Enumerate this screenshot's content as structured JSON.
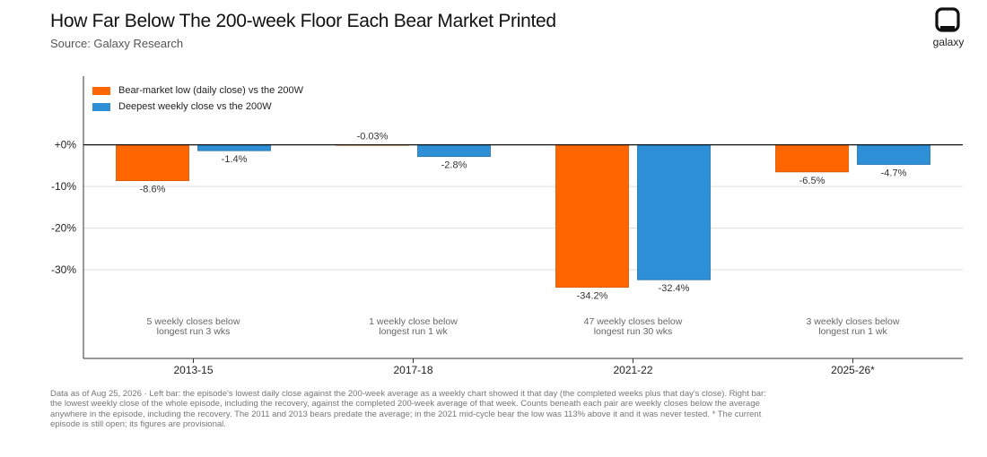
{
  "header": {
    "title": "How Far Below The 200-week Floor Each Bear Market Printed",
    "subtitle": "Source: Galaxy Research"
  },
  "brand": {
    "logo_text": "galaxy",
    "logo_icon": "galaxy-logo-icon"
  },
  "legend": [
    {
      "label": "Bear-market low (daily close) vs the 200W",
      "color": "#ff6600"
    },
    {
      "label": "Deepest weekly close vs the 200W",
      "color": "#2d8fd5"
    }
  ],
  "chart_data": {
    "type": "bar",
    "title": "How Far Below The 200-week Floor Each Bear Market Printed",
    "categories": [
      "2013-15",
      "2017-18",
      "2021-22",
      "2025-26*"
    ],
    "series": [
      {
        "name": "Bear-market low (daily close) vs the 200W",
        "color": "#ff6600",
        "values": [
          -8.6,
          -0.03,
          -34.2,
          -6.5
        ],
        "labels": [
          "-8.6%",
          "-0.03%",
          "-34.2%",
          "-6.5%"
        ]
      },
      {
        "name": "Deepest weekly close vs the 200W",
        "color": "#2d8fd5",
        "values": [
          -1.4,
          -2.8,
          -32.4,
          -4.7
        ],
        "labels": [
          "-1.4%",
          "-2.8%",
          "-32.4%",
          "-4.7%"
        ]
      }
    ],
    "yticks": [
      0,
      -10,
      -20,
      -30
    ],
    "ytick_labels": [
      "+0%",
      "-10%",
      "-20%",
      "-30%"
    ],
    "ylim": [
      -51.3,
      16.5
    ],
    "grid": true,
    "legend_position": "top-left",
    "annotations": [
      {
        "line1": "5 weekly closes below",
        "line2": "longest run 3 wks"
      },
      {
        "line1": "1 weekly close below",
        "line2": "longest run 1 wk"
      },
      {
        "line1": "47 weekly closes below",
        "line2": "longest run 30 wks"
      },
      {
        "line1": "3 weekly closes below",
        "line2": "longest run 1 wk"
      }
    ]
  },
  "footnote": "Data as of Aug 25, 2026 · Left bar: the episode's lowest daily close against the 200-week average as a weekly chart showed it that day (the completed weeks plus that day's close). Right bar: the lowest weekly close of the whole episode, including the recovery, against the completed 200-week average of that week. Counts beneath each pair are weekly closes below the average anywhere in the episode, including the recovery. The 2011 and 2013 bears predate the average; in the 2021 mid-cycle bear the low was 113% above it and it was never tested. * The current episode is still open; its figures are provisional."
}
